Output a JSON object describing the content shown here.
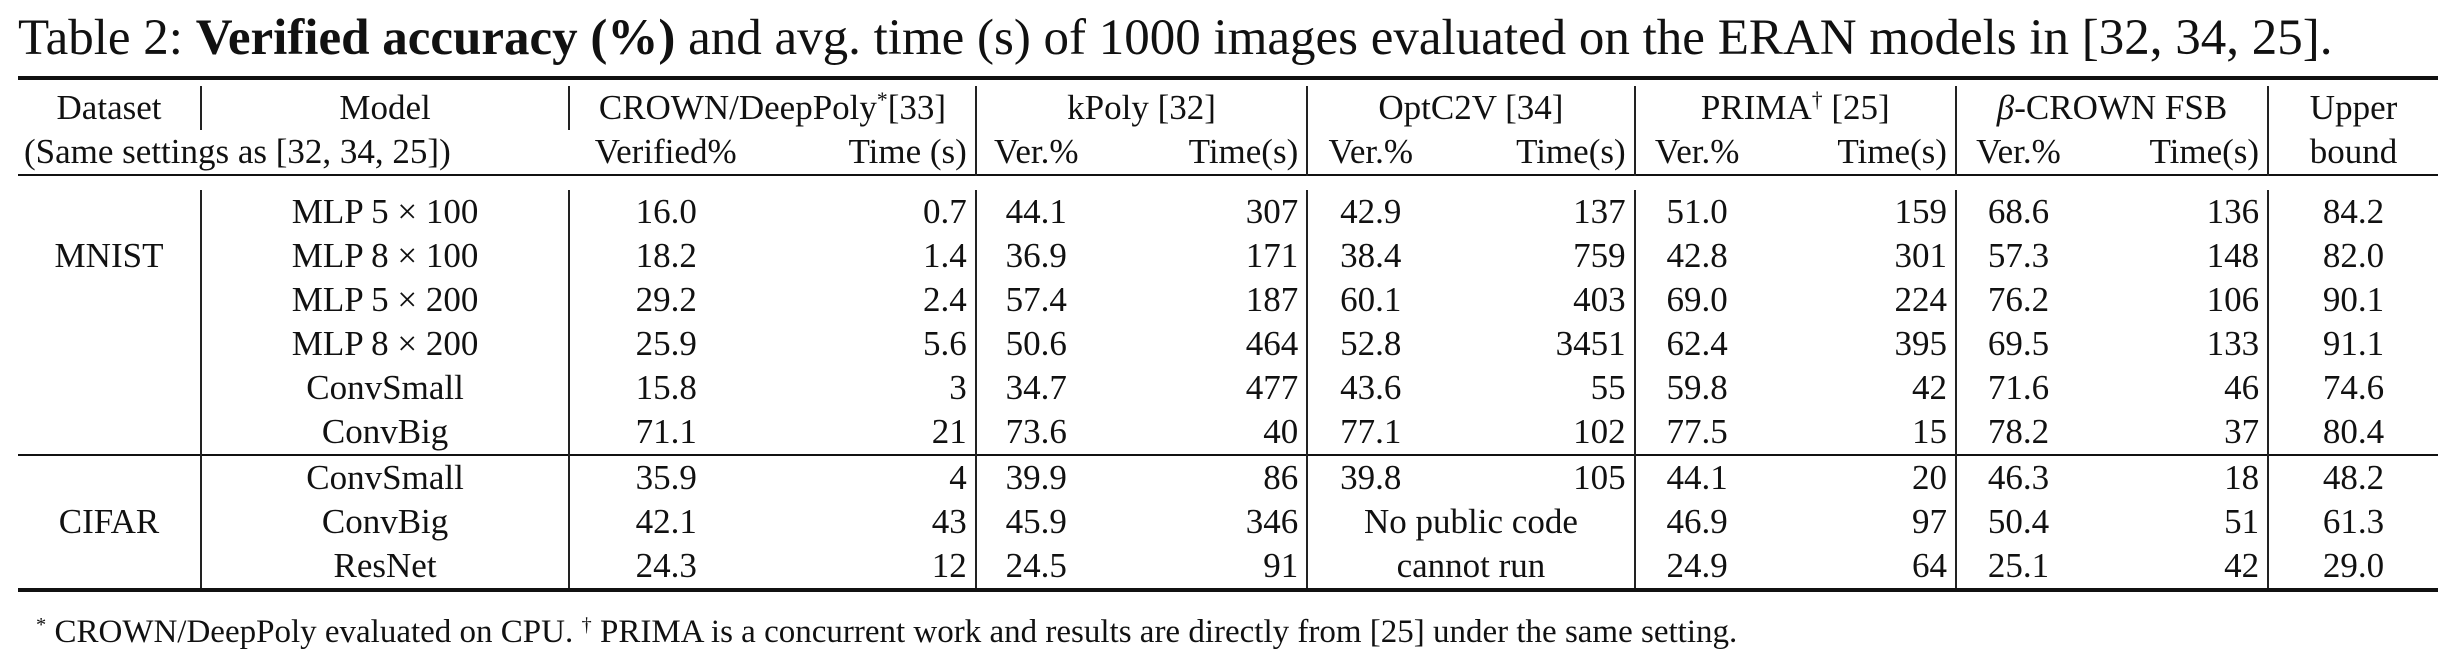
{
  "caption": {
    "prefix": "Table 2: ",
    "bold": "Verified accuracy (%)",
    "rest": " and avg. time (s) of 1000 images evaluated on the ERAN models in [32, 34, 25]."
  },
  "header": {
    "dataset": "Dataset",
    "dataset_sub": "(Same settings as [32, 34, 25])",
    "model": "Model",
    "crown": "CROWN/DeepPoly",
    "crown_mark": "*",
    "crown_ref": "[33]",
    "kpoly": "kPoly [32]",
    "optc2v": "OptC2V [34]",
    "prima": "PRIMA",
    "prima_mark": "†",
    "prima_ref": " [25]",
    "beta_symbol": "β",
    "beta_rest": "-CROWN FSB",
    "upper": "Upper",
    "upper_sub": "bound",
    "verified_pct": "Verified%",
    "time_s": "Time (s)",
    "ver_pct": "Ver.%",
    "time_s2": "Time(s)"
  },
  "rows": [
    {
      "dataset": "",
      "model": "MLP 5 × 100",
      "crown_v": "16.0",
      "crown_t": "0.7",
      "kpoly_v": "44.1",
      "kpoly_t": "307",
      "opt_v": "42.9",
      "opt_t": "137",
      "prima_v": "51.0",
      "prima_t": "159",
      "beta_v": "68.6",
      "beta_t": "136",
      "upper": "84.2"
    },
    {
      "dataset": "MNIST",
      "model": "MLP 8 × 100",
      "crown_v": "18.2",
      "crown_t": "1.4",
      "kpoly_v": "36.9",
      "kpoly_t": "171",
      "opt_v": "38.4",
      "opt_t": "759",
      "prima_v": "42.8",
      "prima_t": "301",
      "beta_v": "57.3",
      "beta_t": "148",
      "upper": "82.0"
    },
    {
      "dataset": "",
      "model": "MLP 5 × 200",
      "crown_v": "29.2",
      "crown_t": "2.4",
      "kpoly_v": "57.4",
      "kpoly_t": "187",
      "opt_v": "60.1",
      "opt_t": "403",
      "prima_v": "69.0",
      "prima_t": "224",
      "beta_v": "76.2",
      "beta_t": "106",
      "upper": "90.1"
    },
    {
      "dataset": "",
      "model": "MLP 8 × 200",
      "crown_v": "25.9",
      "crown_t": "5.6",
      "kpoly_v": "50.6",
      "kpoly_t": "464",
      "opt_v": "52.8",
      "opt_t": "3451",
      "prima_v": "62.4",
      "prima_t": "395",
      "beta_v": "69.5",
      "beta_t": "133",
      "upper": "91.1"
    },
    {
      "dataset": "",
      "model": "ConvSmall",
      "crown_v": "15.8",
      "crown_t": "3",
      "kpoly_v": "34.7",
      "kpoly_t": "477",
      "opt_v": "43.6",
      "opt_t": "55",
      "prima_v": "59.8",
      "prima_t": "42",
      "beta_v": "71.6",
      "beta_t": "46",
      "upper": "74.6"
    },
    {
      "dataset": "",
      "model": "ConvBig",
      "crown_v": "71.1",
      "crown_t": "21",
      "kpoly_v": "73.6",
      "kpoly_t": "40",
      "opt_v": "77.1",
      "opt_t": "102",
      "prima_v": "77.5",
      "prima_t": "15",
      "beta_v": "78.2",
      "beta_t": "37",
      "upper": "80.4"
    },
    {
      "dataset": "",
      "model": "ConvSmall",
      "crown_v": "35.9",
      "crown_t": "4",
      "kpoly_v": "39.9",
      "kpoly_t": "86",
      "opt_v": "39.8",
      "opt_t": "105",
      "prima_v": "44.1",
      "prima_t": "20",
      "beta_v": "46.3",
      "beta_t": "18",
      "upper": "48.2"
    },
    {
      "dataset": "CIFAR",
      "model": "ConvBig",
      "crown_v": "42.1",
      "crown_t": "43",
      "kpoly_v": "45.9",
      "kpoly_t": "346",
      "opt_merged": "No public code",
      "prima_v": "46.9",
      "prima_t": "97",
      "beta_v": "50.4",
      "beta_t": "51",
      "upper": "61.3"
    },
    {
      "dataset": "",
      "model": "ResNet",
      "crown_v": "24.3",
      "crown_t": "12",
      "kpoly_v": "24.5",
      "kpoly_t": "91",
      "opt_merged": "cannot run",
      "prima_v": "24.9",
      "prima_t": "64",
      "beta_v": "25.1",
      "beta_t": "42",
      "upper": "29.0"
    }
  ],
  "footnote": {
    "mark1": "*",
    "text1": " CROWN/DeepPoly evaluated on CPU. ",
    "mark2": "†",
    "text2": " PRIMA is a concurrent work and results are directly from [25] under the same setting."
  }
}
